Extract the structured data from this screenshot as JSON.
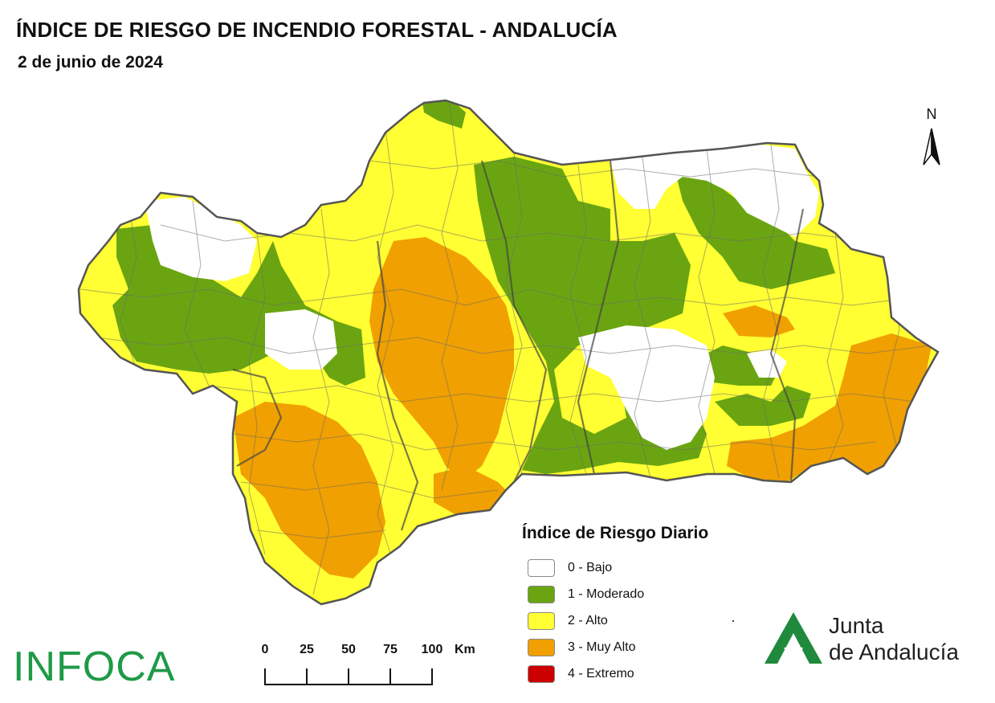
{
  "title": "ÍNDICE DE RIESGO DE INCENDIO FORESTAL - ANDALUCÍA",
  "date": "2 de junio de 2024",
  "north_label": "N",
  "legend": {
    "title": "Índice de Riesgo Diario",
    "items": [
      {
        "label": "0 - Bajo",
        "color": "#ffffff"
      },
      {
        "label": "1 - Moderado",
        "color": "#6aa511"
      },
      {
        "label": "2 - Alto",
        "color": "#ffff33"
      },
      {
        "label": "3 - Muy Alto",
        "color": "#f0a000"
      },
      {
        "label": "4 - Extremo",
        "color": "#cc0000"
      }
    ]
  },
  "scale": {
    "labels": [
      "0",
      "25",
      "50",
      "75",
      "100"
    ],
    "unit": "Km"
  },
  "logos": {
    "infoca": "INFOCA",
    "junta_line1": "Junta",
    "junta_line2": "de Andalucía",
    "junta_color": "#1f8a3c"
  },
  "map": {
    "region": "Andalucía",
    "outline_color": "#555555",
    "risk_zones": [
      {
        "level": 0,
        "area": "Sierra de Aracena (north-west Huelva)"
      },
      {
        "level": 0,
        "area": "Sierra de Cazorla / northern Jaén"
      },
      {
        "level": 0,
        "area": "Granada – Sierra Nevada"
      },
      {
        "level": 0,
        "area": "Sierra Norte de Sevilla"
      },
      {
        "level": 1,
        "area": "Sierra Morena (northern Córdoba / Jaén)"
      },
      {
        "level": 1,
        "area": "Huelva inland"
      },
      {
        "level": 1,
        "area": "Sierra Nevada surroundings"
      },
      {
        "level": 2,
        "area": "Guadalquivir valley and rest of region"
      },
      {
        "level": 3,
        "area": "Campiña of Sevilla / Córdoba"
      },
      {
        "level": 3,
        "area": "Cádiz interior"
      },
      {
        "level": 3,
        "area": "Almería"
      },
      {
        "level": 3,
        "area": "Málaga interior"
      }
    ]
  }
}
